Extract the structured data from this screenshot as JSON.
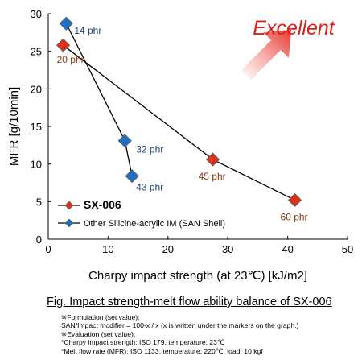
{
  "chart_data": {
    "type": "scatter",
    "xlabel": "Charpy impact strength (at 23℃) [kJ/m2]",
    "ylabel": "MFR [g/10min]",
    "xlim": [
      0,
      50
    ],
    "ylim": [
      0,
      30
    ],
    "xticks": [
      0,
      10,
      20,
      30,
      40,
      50
    ],
    "yticks": [
      0,
      5,
      10,
      15,
      20,
      25,
      30
    ],
    "grid": false,
    "legend_position": "bottom-left",
    "series": [
      {
        "name": "SX-006",
        "color": "#d9341b",
        "marker": "diamond",
        "points": [
          {
            "x": 2.5,
            "y": 25.8,
            "label": "20 phr"
          },
          {
            "x": 27.5,
            "y": 10.6,
            "label": "45 phr"
          },
          {
            "x": 41.2,
            "y": 5.2,
            "label": "60 phr"
          }
        ]
      },
      {
        "name": "Other Silicine-acrylic IM (SAN Shell)",
        "color": "#1f6fc2",
        "marker": "diamond",
        "points": [
          {
            "x": 3.0,
            "y": 28.7,
            "label": "14 phr"
          },
          {
            "x": 12.8,
            "y": 13.1,
            "label": "32 phr"
          },
          {
            "x": 14.0,
            "y": 8.4,
            "label": "43 phr"
          }
        ]
      }
    ],
    "annotation": {
      "text": "Excellent",
      "color": "#e0201a"
    }
  },
  "caption": "Fig.  Impact strength-melt flow ability balance of SX-006",
  "notes": [
    "※Formulation (set value):",
    "SAN/Impact modifier = 100-x / x (x is written under the markers on the graph.)",
    "※Evaluation (set value):",
    "*Charpy impact strength; ISO 179, temperature; 23℃",
    "*Melt flow rate (MFR); ISO 1133, temperature; 220℃, load; 10 kgf"
  ]
}
